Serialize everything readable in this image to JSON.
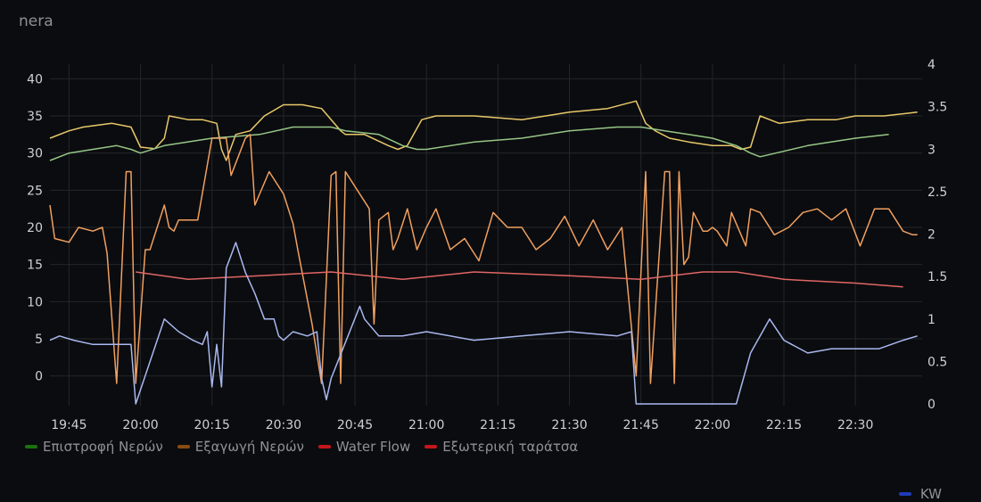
{
  "panel": {
    "title": "nera"
  },
  "colors": {
    "supply": "#e8c86a",
    "return": "#96c686",
    "export": "#f0a060",
    "outdoor": "#e06666",
    "kw": "#a9b8f0",
    "grid": "#24262b",
    "legend_return": "#19730e",
    "legend_export": "#8a4b12",
    "legend_waterflow": "#c4161c",
    "legend_outdoor": "#c4161c",
    "legend_kw": "#1f3cba"
  },
  "legend": [
    {
      "label": "Επιστροφή Νερών",
      "color_key": "legend_return"
    },
    {
      "label": "Εξαγωγή Νερών",
      "color_key": "legend_export"
    },
    {
      "label": "Water Flow",
      "color_key": "legend_waterflow"
    },
    {
      "label": "Εξωτερική ταράτσα",
      "color_key": "legend_outdoor"
    }
  ],
  "legend_right": {
    "label": "KW",
    "color_key": "legend_kw"
  },
  "chart_data": {
    "type": "line",
    "x_ticks": [
      "19:45",
      "20:00",
      "20:15",
      "20:30",
      "20:45",
      "21:00",
      "21:15",
      "21:30",
      "21:45",
      "22:00",
      "22:15",
      "22:30"
    ],
    "x_tick_minutes": [
      1185,
      1200,
      1215,
      1230,
      1245,
      1260,
      1275,
      1290,
      1305,
      1320,
      1335,
      1350
    ],
    "xlim_minutes": [
      1181,
      1364
    ],
    "left_axis": {
      "ticks": [
        "0",
        "5",
        "10",
        "15",
        "20",
        "25",
        "30",
        "35",
        "40"
      ],
      "tick_values": [
        0,
        5,
        10,
        15,
        20,
        25,
        30,
        35,
        40
      ],
      "ylim": [
        -4,
        41
      ]
    },
    "right_axis": {
      "ticks": [
        "0",
        "0.5",
        "1",
        "1.5",
        "2",
        "2.5",
        "3",
        "3.5",
        "4"
      ],
      "tick_values": [
        0,
        0.5,
        1,
        1.5,
        2,
        2.5,
        3,
        3.5,
        4
      ],
      "ylim": [
        0,
        4
      ]
    },
    "series": [
      {
        "name": "",
        "color_key": "supply",
        "axis": "left",
        "x": [
          1181,
          1185,
          1188,
          1194,
          1198,
          1200,
          1203,
          1205,
          1206,
          1210,
          1213,
          1216,
          1217,
          1218,
          1220,
          1223,
          1226,
          1230,
          1234,
          1238,
          1242,
          1243,
          1247,
          1252,
          1254,
          1256,
          1259,
          1262,
          1270,
          1280,
          1290,
          1298,
          1304,
          1306,
          1308,
          1311,
          1315,
          1320,
          1324,
          1326,
          1328,
          1330,
          1334,
          1340,
          1346,
          1350,
          1356,
          1363
        ],
        "y": [
          32,
          33,
          33.5,
          34,
          33.5,
          30.8,
          30.6,
          32,
          35,
          34.5,
          34.5,
          34,
          30.5,
          29,
          32.5,
          33,
          35,
          36.5,
          36.5,
          36,
          33,
          32.5,
          32.5,
          31,
          30.5,
          31,
          34.5,
          35,
          35,
          34.5,
          35.5,
          36,
          37,
          34,
          33,
          32,
          31.5,
          31,
          31,
          30.5,
          30.8,
          35,
          34,
          34.5,
          34.5,
          35,
          35,
          35.5
        ]
      },
      {
        "name": "",
        "color_key": "return",
        "axis": "left",
        "x": [
          1181,
          1185,
          1190,
          1195,
          1198,
          1200,
          1205,
          1215,
          1225,
          1232,
          1240,
          1243,
          1250,
          1255,
          1258,
          1260,
          1270,
          1280,
          1290,
          1300,
          1305,
          1310,
          1315,
          1320,
          1325,
          1328,
          1330,
          1340,
          1350,
          1357
        ],
        "y": [
          29,
          30,
          30.5,
          31,
          30.5,
          30,
          31,
          32,
          32.5,
          33.5,
          33.5,
          33,
          32.5,
          31,
          30.5,
          30.5,
          31.5,
          32,
          33,
          33.5,
          33.5,
          33,
          32.5,
          32,
          31,
          30,
          29.5,
          31,
          32,
          32.5
        ]
      },
      {
        "name": "",
        "color_key": "export",
        "axis": "left",
        "x": [
          1181,
          1182,
          1185,
          1187,
          1190,
          1192,
          1193,
          1195,
          1197,
          1198,
          1199,
          1201,
          1202,
          1205,
          1206,
          1207,
          1208,
          1212,
          1215,
          1218,
          1219,
          1222,
          1223,
          1224,
          1227,
          1230,
          1232,
          1233,
          1236,
          1238,
          1240,
          1241,
          1242,
          1243,
          1248,
          1249,
          1250,
          1252,
          1253,
          1254,
          1256,
          1258,
          1260,
          1262,
          1265,
          1268,
          1271,
          1274,
          1277,
          1280,
          1283,
          1286,
          1289,
          1292,
          1295,
          1298,
          1301,
          1304,
          1306,
          1307,
          1310,
          1311,
          1312,
          1313,
          1314,
          1315,
          1316,
          1318,
          1319,
          1320,
          1321,
          1323,
          1324,
          1327,
          1328,
          1330,
          1333,
          1336,
          1339,
          1342,
          1345,
          1348,
          1351,
          1354,
          1357,
          1360,
          1362,
          1363
        ],
        "y": [
          23,
          18.5,
          18,
          20,
          19.5,
          20,
          16.5,
          -1,
          27.5,
          27.5,
          -1,
          17,
          17,
          23,
          20,
          19.5,
          21,
          21,
          32,
          32,
          27,
          32,
          32.5,
          23,
          27.5,
          24.5,
          20.5,
          17,
          7,
          -1,
          27,
          27.5,
          -1,
          27.5,
          22.5,
          7,
          21,
          22,
          17,
          18.5,
          22.5,
          17,
          20,
          22.5,
          17,
          18.5,
          15.5,
          22,
          20,
          20,
          17,
          18.5,
          21.5,
          17.5,
          21,
          17,
          20,
          0,
          27.5,
          -1,
          27.5,
          27.5,
          -1,
          27.5,
          15,
          16,
          22,
          19.5,
          19.5,
          20,
          19.5,
          17.5,
          22,
          17.5,
          22.5,
          22,
          19,
          20,
          22,
          22.5,
          21,
          22.5,
          17.5,
          22.5,
          22.5,
          19.5,
          19,
          19
        ]
      },
      {
        "name": "",
        "color_key": "outdoor",
        "axis": "left",
        "x": [
          1199,
          1210,
          1225,
          1240,
          1255,
          1270,
          1290,
          1305,
          1318,
          1325,
          1335,
          1350,
          1360
        ],
        "y": [
          14,
          13,
          13.5,
          14,
          13,
          14,
          13.5,
          13,
          14,
          14,
          13,
          12.5,
          12
        ]
      },
      {
        "name": "",
        "color_key": "kw",
        "axis": "right",
        "x": [
          1181,
          1183,
          1186,
          1190,
          1195,
          1198,
          1199,
          1205,
          1208,
          1211,
          1213,
          1214,
          1215,
          1216,
          1217,
          1218,
          1219,
          1220,
          1222,
          1224,
          1226,
          1228,
          1229,
          1230,
          1232,
          1235,
          1237,
          1238,
          1239,
          1240,
          1246,
          1247,
          1250,
          1255,
          1260,
          1270,
          1280,
          1290,
          1300,
          1303,
          1304,
          1305,
          1310,
          1320,
          1325,
          1328,
          1332,
          1335,
          1340,
          1345,
          1350,
          1355,
          1360,
          1363
        ],
        "y": [
          0.75,
          0.8,
          0.75,
          0.7,
          0.7,
          0.7,
          0,
          1,
          0.85,
          0.75,
          0.7,
          0.85,
          0.2,
          0.7,
          0.2,
          1.6,
          1.75,
          1.9,
          1.55,
          1.3,
          1.0,
          1.0,
          0.8,
          0.75,
          0.85,
          0.8,
          0.85,
          0.3,
          0.05,
          0.3,
          1.15,
          1.0,
          0.8,
          0.8,
          0.85,
          0.75,
          0.8,
          0.85,
          0.8,
          0.85,
          0,
          0,
          0,
          0,
          0,
          0.6,
          1.0,
          0.75,
          0.6,
          0.65,
          0.65,
          0.65,
          0.75,
          0.8
        ]
      }
    ]
  }
}
